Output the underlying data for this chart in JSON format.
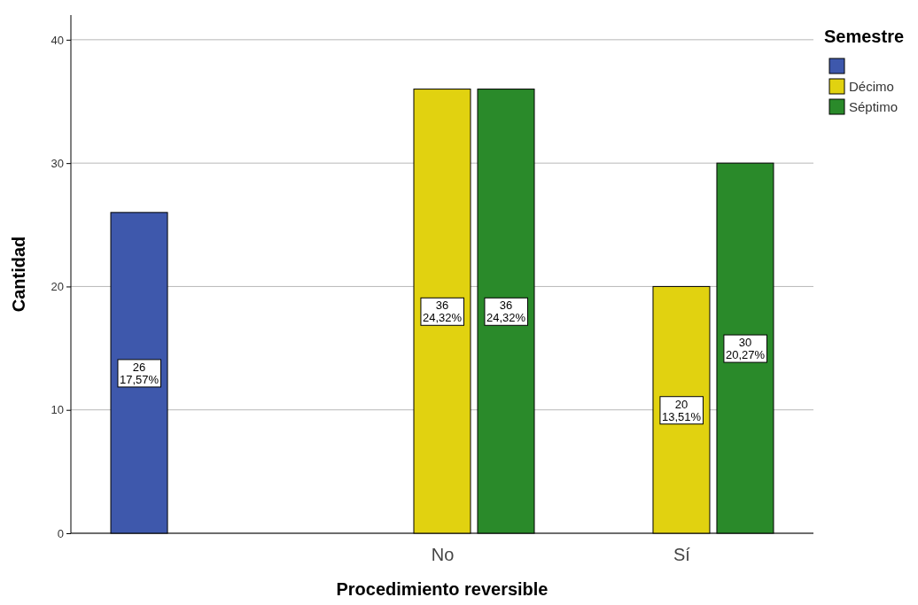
{
  "chart_data": {
    "type": "bar",
    "xlabel": "Procedimiento reversible",
    "ylabel": "Cantidad",
    "legend_title": "Semestre",
    "categories": [
      null,
      "No",
      "Sí"
    ],
    "series": [
      {
        "color": "#3e58ac",
        "values": [
          26,
          null,
          null
        ],
        "value_labels": [
          "26\n17,57%",
          null,
          null
        ]
      },
      {
        "name": "Décimo",
        "color": "#e1d210",
        "values": [
          null,
          36,
          20
        ],
        "value_labels": [
          null,
          "36\n24,32%",
          "20\n13,51%"
        ]
      },
      {
        "name": "Séptimo",
        "color": "#2a8a2a",
        "values": [
          null,
          36,
          30
        ],
        "value_labels": [
          null,
          "36\n24,32%",
          "30\n20,27%"
        ]
      }
    ],
    "ylim": [
      0,
      42
    ],
    "yticks": [
      0,
      10,
      20,
      30,
      40
    ],
    "grid": "y",
    "legend": "top right"
  }
}
